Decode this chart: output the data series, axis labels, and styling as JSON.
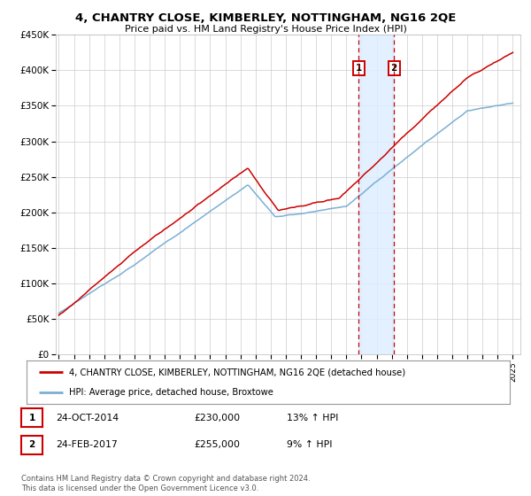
{
  "title": "4, CHANTRY CLOSE, KIMBERLEY, NOTTINGHAM, NG16 2QE",
  "subtitle": "Price paid vs. HM Land Registry's House Price Index (HPI)",
  "ylim": [
    0,
    450000
  ],
  "yticks": [
    0,
    50000,
    100000,
    150000,
    200000,
    250000,
    300000,
    350000,
    400000,
    450000
  ],
  "ytick_labels": [
    "£0",
    "£50K",
    "£100K",
    "£150K",
    "£200K",
    "£250K",
    "£300K",
    "£350K",
    "£400K",
    "£450K"
  ],
  "transactions": [
    {
      "label": "1",
      "date": "24-OCT-2014",
      "price": 230000,
      "pct": "13%",
      "year": 2014.82
    },
    {
      "label": "2",
      "date": "24-FEB-2017",
      "price": 255000,
      "pct": "9%",
      "year": 2017.15
    }
  ],
  "legend_line1": "4, CHANTRY CLOSE, KIMBERLEY, NOTTINGHAM, NG16 2QE (detached house)",
  "legend_line2": "HPI: Average price, detached house, Broxtowe",
  "footnote": "Contains HM Land Registry data © Crown copyright and database right 2024.\nThis data is licensed under the Open Government Licence v3.0.",
  "line_color_red": "#cc0000",
  "line_color_blue": "#7bafd4",
  "marker_box_color": "#cc0000",
  "shading_color": "#ddeeff",
  "background_color": "#ffffff",
  "grid_color": "#cccccc",
  "xlim_left": 1994.8,
  "xlim_right": 2025.5
}
